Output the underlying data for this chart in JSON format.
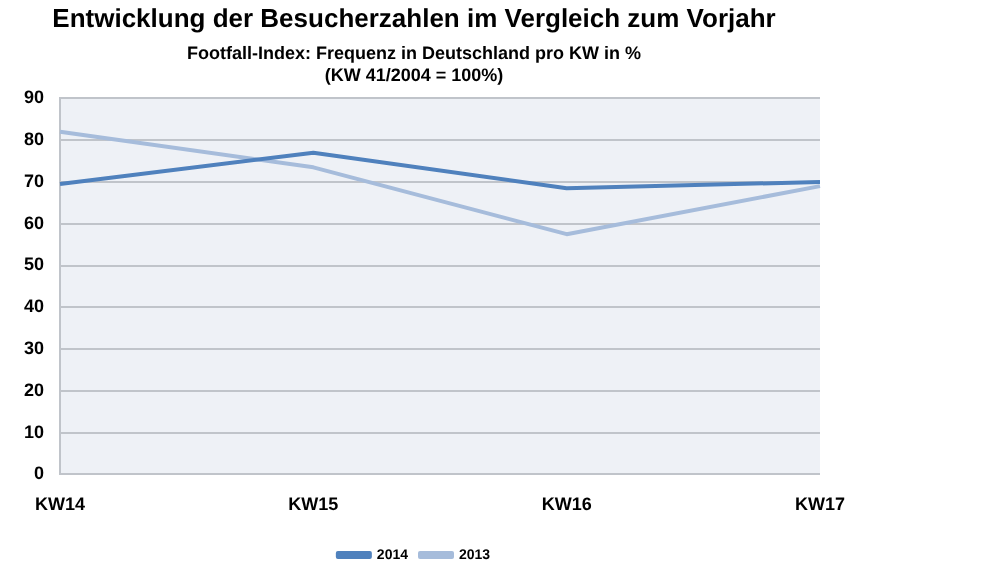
{
  "chart_data": {
    "type": "line",
    "title": "Entwicklung der Besucherzahlen im Vergleich zum Vorjahr",
    "subtitle": "Footfall-Index: Frequenz in Deutschland pro KW in %\n(KW 41/2004 = 100%)",
    "categories": [
      "KW14",
      "KW15",
      "KW16",
      "KW17"
    ],
    "series": [
      {
        "name": "2014",
        "color": "#4f81bd",
        "values": [
          69.5,
          77,
          68.5,
          70
        ]
      },
      {
        "name": "2013",
        "color": "#a6bcdb",
        "values": [
          82,
          73.5,
          57.5,
          69
        ]
      }
    ],
    "ylim": [
      0,
      90
    ],
    "yticks": [
      0,
      10,
      20,
      30,
      40,
      50,
      60,
      70,
      80,
      90
    ],
    "grid": "y",
    "legend": "bottom",
    "marker": "none",
    "line_style": "solid"
  }
}
